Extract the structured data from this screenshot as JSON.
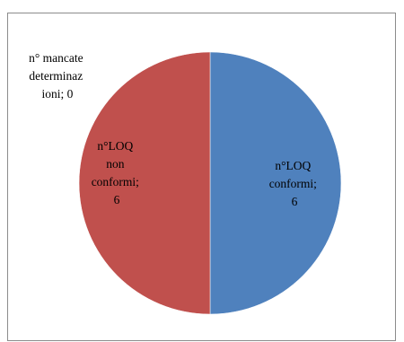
{
  "chart_data": {
    "type": "pie",
    "title": "",
    "slices": [
      {
        "name": "n°LOQ conformi",
        "value": 6,
        "color": "#4f81bd",
        "label_lines": [
          "n°LOQ",
          "conformi;",
          "6"
        ]
      },
      {
        "name": "n°LOQ non conformi",
        "value": 6,
        "color": "#c0504d",
        "label_lines": [
          "n°LOQ",
          "non",
          "conformi;",
          "6"
        ]
      },
      {
        "name": "n° mancate determinazioni",
        "value": 0,
        "color": "#9bbb59",
        "label_lines": [
          "n° mancate",
          "determinaz",
          "ioni; 0"
        ]
      }
    ],
    "legend": "none"
  }
}
